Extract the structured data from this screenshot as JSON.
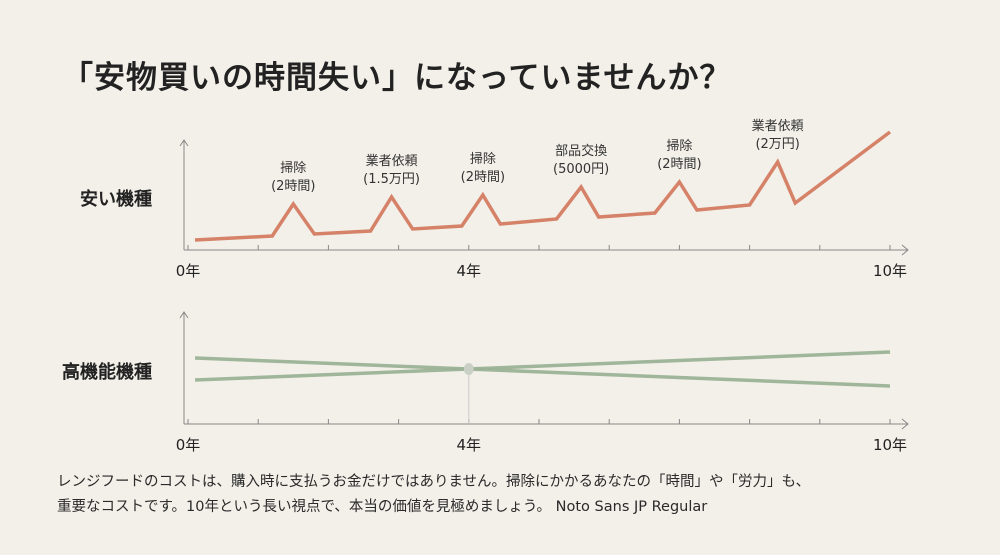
{
  "title": "「安物買いの時間失い」になっていませんか？",
  "colors": {
    "cheap_line": "#d37b62",
    "premium_line": "#9bb296",
    "background": "#f3f0e9",
    "axis": "#888888"
  },
  "chart_data": [
    {
      "type": "line",
      "row_label": "安い機種",
      "x_unit": "年",
      "xlim": [
        0,
        10
      ],
      "x_tick_labels": [
        "0年",
        "4年",
        "10年"
      ],
      "x_minor_ticks": [
        0,
        1,
        2,
        3,
        4,
        5,
        6,
        7,
        8,
        9,
        10
      ],
      "y_axis_values_shown": false,
      "series": [
        {
          "color": "#d37b62",
          "x": [
            0.1,
            1.2,
            1.5,
            1.8,
            2.6,
            2.9,
            3.2,
            3.9,
            4.2,
            4.45,
            5.25,
            5.6,
            5.85,
            6.65,
            7.0,
            7.25,
            8.0,
            8.4,
            8.65,
            10
          ],
          "y": [
            10,
            14,
            46,
            16,
            19,
            53,
            21,
            24,
            55,
            26,
            31,
            63,
            33,
            37,
            68,
            40,
            45,
            88,
            47,
            118
          ]
        }
      ],
      "annotations": [
        {
          "x": 1.5,
          "y": 46,
          "lines": [
            "掃除",
            "(2時間)"
          ]
        },
        {
          "x": 2.9,
          "y": 53,
          "lines": [
            "業者依頼",
            "(1.5万円)"
          ]
        },
        {
          "x": 4.2,
          "y": 55,
          "lines": [
            "掃除",
            "(2時間)"
          ]
        },
        {
          "x": 5.6,
          "y": 63,
          "lines": [
            "部品交換",
            "(5000円)"
          ]
        },
        {
          "x": 7.0,
          "y": 68,
          "lines": [
            "掃除",
            "(2時間)"
          ]
        },
        {
          "x": 8.4,
          "y": 88,
          "lines": [
            "業者依頼",
            "(2万円)"
          ]
        }
      ]
    },
    {
      "type": "line",
      "row_label": "高機能機種",
      "x_unit": "年",
      "xlim": [
        0,
        10
      ],
      "x_tick_labels": [
        "0年",
        "4年",
        "10年"
      ],
      "x_minor_ticks": [
        0,
        1,
        2,
        3,
        4,
        5,
        6,
        7,
        8,
        9,
        10
      ],
      "y_axis_values_shown": false,
      "series": [
        {
          "color": "#9bb296",
          "x": [
            0.1,
            10
          ],
          "y": [
            66,
            38
          ]
        },
        {
          "color": "#9bb296",
          "x": [
            0.1,
            10
          ],
          "y": [
            44,
            72
          ]
        }
      ],
      "marker": {
        "x": 4,
        "y": 55
      }
    }
  ],
  "footer": {
    "line1": "レンジフードのコストは、購入時に支払うお金だけではありません。掃除にかかるあなたの「時間」や「労力」も、",
    "line2": "重要なコストです。10年という長い視点で、本当の価値を見極めましょう。 Noto Sans JP Regular"
  }
}
